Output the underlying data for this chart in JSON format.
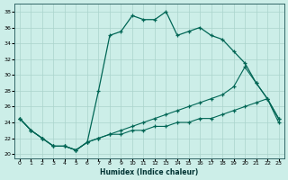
{
  "xlabel": "Humidex (Indice chaleur)",
  "bg_color": "#cceee8",
  "grid_color": "#aad4cc",
  "line_color": "#006655",
  "xlim": [
    -0.5,
    23.5
  ],
  "ylim": [
    19.5,
    39.0
  ],
  "xticks": [
    0,
    1,
    2,
    3,
    4,
    5,
    6,
    7,
    8,
    9,
    10,
    11,
    12,
    13,
    14,
    15,
    16,
    17,
    18,
    19,
    20,
    21,
    22,
    23
  ],
  "yticks": [
    20,
    22,
    24,
    26,
    28,
    30,
    32,
    34,
    36,
    38
  ],
  "line1_x": [
    0,
    1,
    2,
    3,
    4,
    5,
    6,
    7,
    8,
    9,
    10,
    11,
    12,
    13,
    14,
    15,
    16,
    17,
    18,
    19,
    20,
    21,
    22,
    23
  ],
  "line1_y": [
    24.5,
    23.0,
    22.0,
    21.0,
    21.0,
    20.5,
    21.5,
    28.0,
    35.0,
    35.5,
    37.5,
    37.0,
    37.0,
    38.0,
    35.0,
    35.5,
    36.0,
    35.0,
    34.5,
    33.0,
    31.5,
    29.0,
    27.0,
    24.5
  ],
  "line2_x": [
    0,
    1,
    2,
    3,
    4,
    5,
    6,
    7,
    8,
    9,
    10,
    11,
    12,
    13,
    14,
    15,
    16,
    17,
    18,
    19,
    20,
    21,
    22,
    23
  ],
  "line2_y": [
    24.5,
    23.0,
    22.0,
    21.0,
    21.0,
    20.5,
    21.5,
    22.0,
    22.5,
    23.0,
    23.5,
    24.0,
    24.5,
    25.0,
    25.5,
    26.0,
    26.5,
    27.0,
    27.5,
    28.5,
    31.0,
    29.0,
    27.0,
    24.5
  ],
  "line3_x": [
    0,
    1,
    2,
    3,
    4,
    5,
    6,
    7,
    8,
    9,
    10,
    11,
    12,
    13,
    14,
    15,
    16,
    17,
    18,
    19,
    20,
    21,
    22,
    23
  ],
  "line3_y": [
    24.5,
    23.0,
    22.0,
    21.0,
    21.0,
    20.5,
    21.5,
    22.0,
    22.5,
    22.5,
    23.0,
    23.0,
    23.5,
    23.5,
    24.0,
    24.0,
    24.5,
    24.5,
    25.0,
    25.5,
    26.0,
    26.5,
    27.0,
    24.0
  ]
}
